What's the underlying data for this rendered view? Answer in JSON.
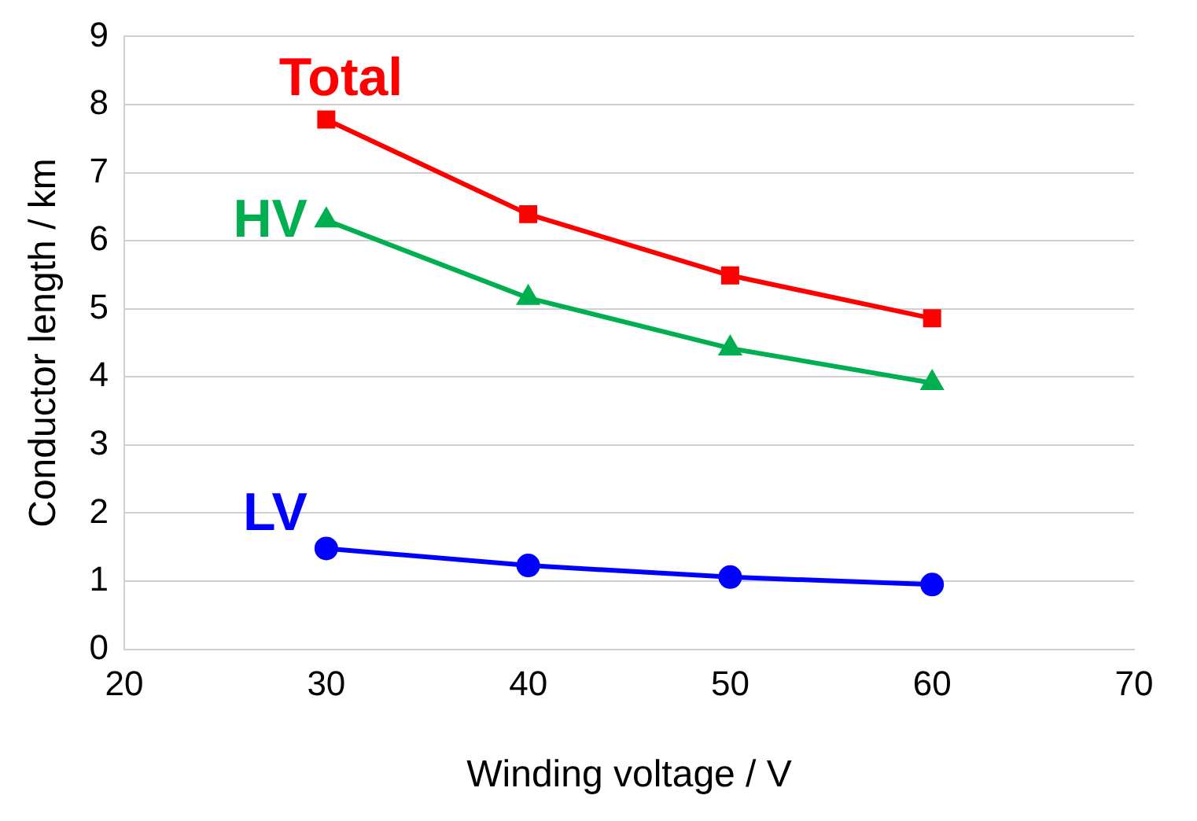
{
  "chart_data": {
    "type": "line",
    "xlabel": "Winding voltage / V",
    "ylabel": "Conductor length / km",
    "x": [
      30,
      40,
      50,
      60
    ],
    "series": [
      {
        "name": "Total",
        "color": "#ff0000",
        "marker": "square",
        "values": [
          7.78,
          6.39,
          5.49,
          4.86
        ]
      },
      {
        "name": "HV",
        "color": "#00b050",
        "marker": "triangle",
        "values": [
          6.3,
          5.16,
          4.42,
          3.91
        ]
      },
      {
        "name": "LV",
        "color": "#0000ff",
        "marker": "circle",
        "values": [
          1.48,
          1.23,
          1.06,
          0.95
        ]
      }
    ],
    "xlim": [
      20,
      70
    ],
    "xticks": [
      20,
      30,
      40,
      50,
      60,
      70
    ],
    "ylim": [
      0,
      9
    ],
    "yticks": [
      0,
      1,
      2,
      3,
      4,
      5,
      6,
      7,
      8,
      9
    ],
    "grid": "y",
    "legend": false,
    "line_style": "solid"
  }
}
